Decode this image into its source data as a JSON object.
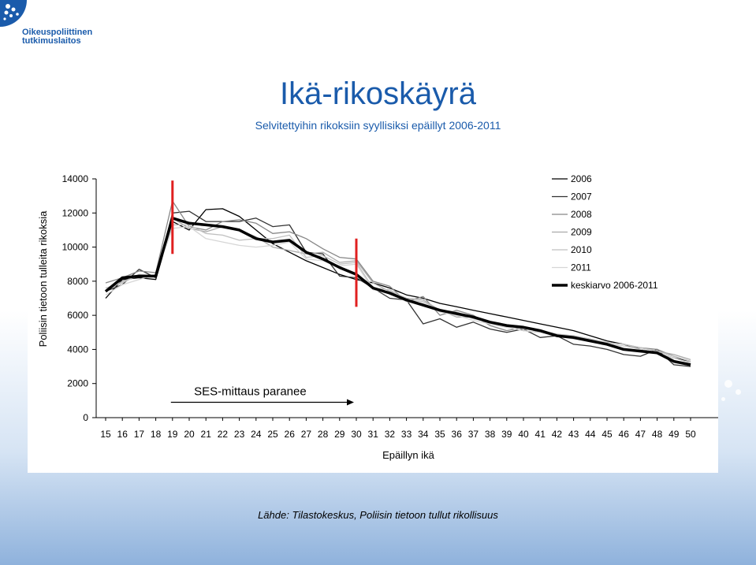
{
  "header": {
    "logo_line1": "Oikeuspoliittinen",
    "logo_line2": "tutkimuslaitos",
    "title": "Ikä-rikoskäyrä",
    "subtitle": "Selvitettyihin rikoksiin syyllisiksi epäillyt 2006-2011"
  },
  "footer": {
    "source": "Lähde: Tilastokeskus, Poliisin tietoon tullut rikollisuus"
  },
  "chart_data": {
    "type": "line",
    "xlabel": "Epäillyn ikä",
    "ylabel": "Poliisin tietoon tulleita rikoksia",
    "ylim": [
      0,
      14000
    ],
    "x": [
      15,
      16,
      17,
      18,
      19,
      20,
      21,
      22,
      23,
      24,
      25,
      26,
      27,
      28,
      29,
      30,
      31,
      32,
      33,
      34,
      35,
      36,
      37,
      38,
      39,
      40,
      41,
      42,
      43,
      44,
      45,
      46,
      47,
      48,
      49,
      50
    ],
    "y_ticks": [
      "0",
      "2000",
      "4000",
      "6000",
      "8000",
      "10000",
      "12000",
      "14000"
    ],
    "legend_position": "top-right",
    "annotation": {
      "text": "SES-mittaus paranee",
      "from_age": 19,
      "to_age": 30,
      "marker_color": "#e02020"
    },
    "series": [
      {
        "name": "2006",
        "color": "#000000",
        "values": [
          7000,
          8100,
          8200,
          8100,
          11500,
          11000,
          12200,
          12250,
          11800,
          11000,
          10200,
          9700,
          9200,
          8800,
          8400,
          8100,
          7900,
          7600,
          7200,
          7000,
          6700,
          6500,
          6300,
          6100,
          5900,
          5700,
          5500,
          5300,
          5100,
          4800,
          4500,
          4300,
          4000,
          3800,
          3500,
          3300
        ]
      },
      {
        "name": "2007",
        "color": "#333333",
        "values": [
          7400,
          7800,
          8700,
          8200,
          12000,
          12100,
          11500,
          11500,
          11500,
          11700,
          11200,
          11300,
          9700,
          9600,
          8300,
          8200,
          7600,
          7000,
          6900,
          5500,
          5800,
          5300,
          5600,
          5200,
          5000,
          5200,
          4700,
          4800,
          4300,
          4200,
          4000,
          3700,
          3600,
          4000,
          3100,
          3000
        ]
      },
      {
        "name": "2008",
        "color": "#888888",
        "values": [
          7900,
          8200,
          8600,
          8500,
          12700,
          11200,
          11000,
          11500,
          11600,
          11400,
          10800,
          10900,
          10500,
          9900,
          9400,
          9300,
          8000,
          7700,
          6800,
          7100,
          6000,
          6300,
          6000,
          5400,
          5100,
          5300,
          5000,
          4800,
          4800,
          4600,
          4400,
          4300,
          4100,
          4000,
          3600,
          3300
        ]
      },
      {
        "name": "2009",
        "color": "#aaaaaa",
        "values": [
          7400,
          8000,
          8300,
          8300,
          11700,
          11100,
          10900,
          11200,
          11000,
          10600,
          10000,
          9800,
          9600,
          9700,
          9100,
          9200,
          7900,
          7400,
          7000,
          6900,
          6300,
          5900,
          5900,
          5500,
          5300,
          5100,
          5000,
          4800,
          4700,
          4600,
          4300,
          4200,
          4100,
          3900,
          3700,
          3400
        ]
      },
      {
        "name": "2010",
        "color": "#c0c0c0",
        "values": [
          7600,
          7900,
          8400,
          8300,
          11300,
          11300,
          10800,
          10700,
          10400,
          10500,
          10500,
          10700,
          9400,
          9500,
          9000,
          9100,
          7600,
          7500,
          6900,
          6800,
          6300,
          6200,
          5800,
          5600,
          5400,
          5200,
          5100,
          4900,
          4800,
          4600,
          4400,
          4300,
          4100,
          3900,
          3600,
          3300
        ]
      },
      {
        "name": "2011",
        "color": "#d6d6d6",
        "values": [
          7200,
          7800,
          8100,
          8400,
          11100,
          11200,
          10500,
          10300,
          10100,
          10000,
          10100,
          10300,
          9300,
          9200,
          8900,
          9000,
          7500,
          7300,
          6800,
          6700,
          6200,
          6000,
          5700,
          5500,
          5300,
          5100,
          5000,
          4800,
          4600,
          4500,
          4300,
          4200,
          4000,
          3800,
          3500,
          3200
        ]
      },
      {
        "name": "keskiarvo 2006-2011",
        "color": "#000000",
        "values": [
          7400,
          8200,
          8300,
          8300,
          11700,
          11400,
          11300,
          11200,
          11000,
          10500,
          10300,
          10400,
          9700,
          9300,
          8800,
          8400,
          7600,
          7300,
          6900,
          6600,
          6300,
          6100,
          5900,
          5600,
          5400,
          5300,
          5100,
          4800,
          4700,
          4500,
          4300,
          4000,
          3900,
          3800,
          3300,
          3100
        ]
      }
    ]
  }
}
